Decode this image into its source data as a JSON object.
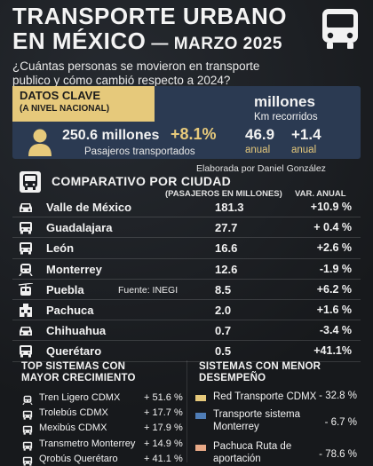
{
  "title": {
    "line1": "TRANSPORTE URBANO",
    "line2": "EN MÉXICO",
    "line2_date": "— MARZO 2025",
    "subtitle_l1": "¿Cuántas personas se movieron en transporte",
    "subtitle_l2": "publico y cómo cambió respecto a 2024?"
  },
  "key_data": {
    "tag_title": "DATOS CLAVE",
    "tag_subtitle": "(A NIVEL NACIONAL)",
    "passengers": "250.6 millones",
    "passengers_change": "+8.1%",
    "passengers_label": "Pasajeros transportados",
    "km_unit": "millones",
    "km_label": "Km recorridos",
    "km_value": "46.9",
    "km_value_label": "anual",
    "km_change": "+1.4",
    "km_change_label": "anual"
  },
  "credit": "Elaborada por Daniel González",
  "comparison": {
    "title": "COMPARATIVO POR CIUDAD",
    "col_value": "(PASAJEROS EN MILLONES)",
    "col_var": "VAR. ANUAL",
    "source": "Fuente: INEGI",
    "rows": [
      {
        "city": "Valle de México",
        "value": "181.3",
        "var": "+10.9 %",
        "icon": "car-icon"
      },
      {
        "city": "Guadalajara",
        "value": "27.7",
        "var": "+ 0.4 %",
        "icon": "bus-icon"
      },
      {
        "city": "León",
        "value": "16.6",
        "var": "+2.6 %",
        "icon": "bus-icon"
      },
      {
        "city": "Monterrey",
        "value": "12.6",
        "var": "-1.9 %",
        "icon": "train-icon"
      },
      {
        "city": "Puebla",
        "value": "8.5",
        "var": "+6.2 %",
        "icon": "cable-car-icon"
      },
      {
        "city": "Pachuca",
        "value": "2.0",
        "var": "+1.6 %",
        "icon": "building-icon"
      },
      {
        "city": "Chihuahua",
        "value": "0.7",
        "var": "-3.4 %",
        "icon": "car-icon"
      },
      {
        "city": "Querétaro",
        "value": "0.5",
        "var": "+41.1%",
        "icon": "bus-icon"
      }
    ]
  },
  "best": {
    "title_l1": "TOP SISTEMAS CON",
    "title_l2": "MAYOR CRECIMIENTO",
    "items": [
      {
        "name": "Tren Ligero CDMX",
        "pct": "+ 51.6 %",
        "icon": "train-icon"
      },
      {
        "name": "Trolebús CDMX",
        "pct": "+ 17.7 %",
        "icon": "bus-icon"
      },
      {
        "name": "Mexibús CDMX",
        "pct": "+ 17.9 %",
        "icon": "bus-icon"
      },
      {
        "name": "Transmetro Monterrey",
        "pct": "+ 14.9 %",
        "icon": "bus-icon"
      },
      {
        "name": "Qrobús Querétaro",
        "pct": "+ 41.1 %",
        "icon": "bus-icon"
      }
    ]
  },
  "worst": {
    "title_l1": "SISTEMAS CON MENOR",
    "title_l2": "DESEMPEÑO",
    "items": [
      {
        "name": "Red Transporte CDMX",
        "pct": "- 32.8 %",
        "color": "#e6c97b"
      },
      {
        "name_l1": "Transporte sistema",
        "name_l2": "Monterrey",
        "pct": "- 6.7 %",
        "color": "#4f7db6"
      },
      {
        "name_l1": "Pachuca Ruta de",
        "name_l2": "aportación",
        "pct": "- 78.6 %",
        "color": "#e8a987"
      }
    ]
  },
  "colors": {
    "accent": "#e6c97b",
    "panel": "#2b3a52",
    "background": "#1b1d21"
  }
}
